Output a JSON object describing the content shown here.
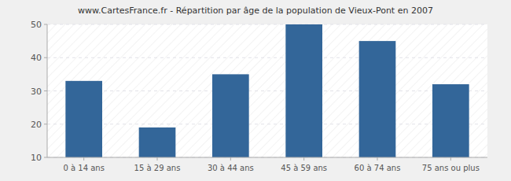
{
  "chart_data": {
    "type": "bar",
    "title": "www.CartesFrance.fr - Répartition par âge de la population de Vieux-Pont en 2007",
    "categories": [
      "0 à 14 ans",
      "15 à 29 ans",
      "30 à 44 ans",
      "45 à 59 ans",
      "60 à 74 ans",
      "75 ans ou plus"
    ],
    "values": [
      33,
      19,
      35,
      50,
      45,
      32
    ],
    "color": "#336699",
    "ylim": [
      10,
      50
    ],
    "yticks": [
      10,
      20,
      30,
      40,
      50
    ],
    "grid": true
  }
}
